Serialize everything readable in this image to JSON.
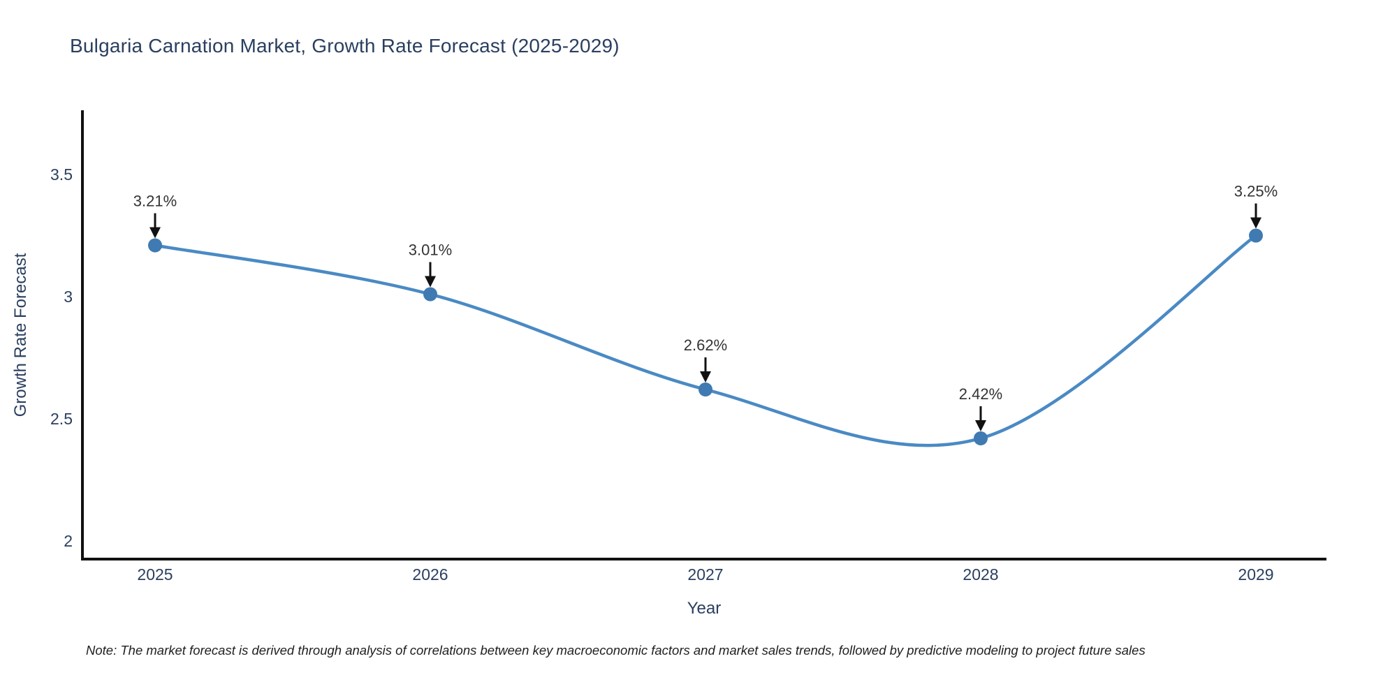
{
  "chart_data": {
    "type": "line",
    "title": "Bulgaria Carnation Market, Growth Rate Forecast (2025-2029)",
    "xlabel": "Year",
    "ylabel": "Growth Rate Forecast",
    "x": [
      2025,
      2026,
      2027,
      2028,
      2029
    ],
    "values": [
      3.21,
      3.01,
      2.62,
      2.42,
      3.25
    ],
    "point_labels": [
      "3.21%",
      "3.01%",
      "2.62%",
      "2.42%",
      "3.25%"
    ],
    "xticks": [
      "2025",
      "2026",
      "2027",
      "2028",
      "2029"
    ],
    "yticks": [
      "3.5",
      "3",
      "2.5",
      "2"
    ],
    "ylim": [
      1.93,
      3.77
    ],
    "line_shape": "spline",
    "grid": false,
    "legend": "none",
    "colors": {
      "line": "#4a8ac4",
      "marker": "#3f7ab2",
      "axis": "#111111",
      "arrow": "#111111",
      "tick_label": "#2a3f5f",
      "title": "#2a3f5f",
      "annotation_text": "#333333"
    }
  },
  "note": {
    "text": "Note: The market forecast is derived through analysis of correlations between key macroeconomic factors and market sales trends, followed by predictive modeling to project future sales"
  }
}
